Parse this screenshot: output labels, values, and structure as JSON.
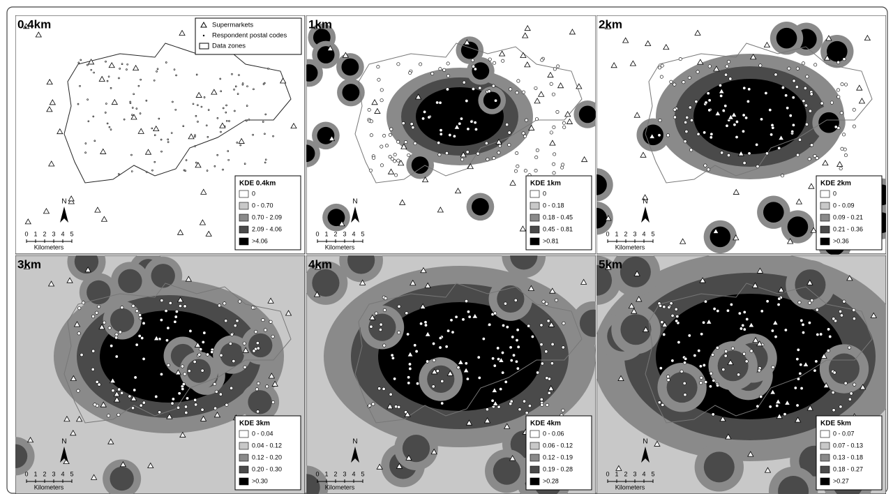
{
  "key": {
    "items": [
      "Supermarkets",
      "Respondent postal codes",
      "Data zones"
    ]
  },
  "panels": [
    {
      "title": "0.4km",
      "legend": {
        "title": "KDE 0.4km",
        "items": [
          "0",
          "0 - 0.70",
          "0.70 - 2.09",
          "2.09 - 4.06",
          ">4.06"
        ]
      },
      "north": "N",
      "scale": {
        "ticks": [
          "0",
          "1",
          "2",
          "3",
          "4",
          "5"
        ],
        "unit": "Kilometers"
      }
    },
    {
      "title": "1km",
      "legend": {
        "title": "KDE 1km",
        "items": [
          "0",
          "0 - 0.18",
          "0.18 - 0.45",
          "0.45 - 0.81",
          ">0.81"
        ]
      },
      "north": "N",
      "scale": {
        "ticks": [
          "0",
          "1",
          "2",
          "3",
          "4",
          "5"
        ],
        "unit": "Kilometers"
      }
    },
    {
      "title": "2km",
      "legend": {
        "title": "KDE 2km",
        "items": [
          "0",
          "0 - 0.09",
          "0.09 - 0.21",
          "0.21 - 0.36",
          ">0.36"
        ]
      },
      "north": "N",
      "scale": {
        "ticks": [
          "0",
          "1",
          "2",
          "3",
          "4",
          "5"
        ],
        "unit": "Kilometers"
      }
    },
    {
      "title": "3km",
      "legend": {
        "title": "KDE 3km",
        "items": [
          "0 - 0.04",
          "0.04 - 0.12",
          "0.12 - 0.20",
          "0.20 - 0.30",
          ">0.30"
        ]
      },
      "north": "N",
      "scale": {
        "ticks": [
          "0",
          "1",
          "2",
          "3",
          "4",
          "5"
        ],
        "unit": "Kilometers"
      }
    },
    {
      "title": "4km",
      "legend": {
        "title": "KDE 4km",
        "items": [
          "0 - 0.06",
          "0.06 - 0.12",
          "0.12 - 0.19",
          "0.19 - 0.28",
          ">0.28"
        ]
      },
      "north": "N",
      "scale": {
        "ticks": [
          "0",
          "1",
          "2",
          "3",
          "4",
          "5"
        ],
        "unit": "Kilometers"
      }
    },
    {
      "title": "5km",
      "legend": {
        "title": "KDE 5km",
        "items": [
          "0 - 0.07",
          "0.07 - 0.13",
          "0.13 - 0.18",
          "0.18 - 0.27",
          ">0.27"
        ]
      },
      "north": "N",
      "scale": {
        "ticks": [
          "0",
          "1",
          "2",
          "3",
          "4",
          "5"
        ],
        "unit": "Kilometers"
      }
    }
  ]
}
